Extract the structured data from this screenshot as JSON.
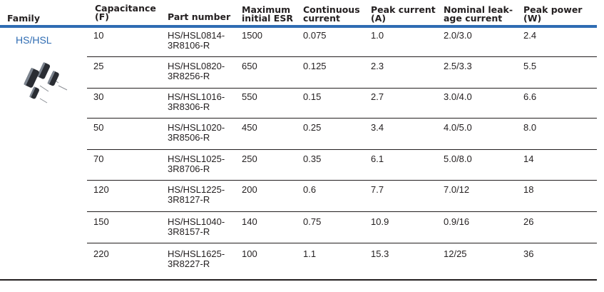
{
  "headers": {
    "family": "Family",
    "capacitance_l1": "Capacitance",
    "capacitance_l2": "(F)",
    "part_number": "Part number",
    "esr_l1": "Maximum",
    "esr_l2": "initial ESR",
    "cont_l1": "Continuous",
    "cont_l2": "current",
    "peak_l1": "Peak current",
    "peak_l2": "(A)",
    "leak_l1": "Nominal leak-",
    "leak_l2": "age current",
    "power_l1": "Peak power",
    "power_l2": "(W)"
  },
  "family": "HS/HSL",
  "rows": [
    {
      "capacitance": "10",
      "part_l1": "HS/HSL0814-",
      "part_l2": "3R8106-R",
      "esr": "1500",
      "continuous": "0.075",
      "peak_current": "1.0",
      "leakage": "2.0/3.0",
      "peak_power": "2.4"
    },
    {
      "capacitance": "25",
      "part_l1": "HS/HSL0820-",
      "part_l2": "3R8256-R",
      "esr": "650",
      "continuous": "0.125",
      "peak_current": "2.3",
      "leakage": "2.5/3.3",
      "peak_power": "5.5"
    },
    {
      "capacitance": "30",
      "part_l1": "HS/HSL1016-",
      "part_l2": "3R8306-R",
      "esr": "550",
      "continuous": "0.15",
      "peak_current": "2.7",
      "leakage": "3.0/4.0",
      "peak_power": "6.6"
    },
    {
      "capacitance": "50",
      "part_l1": "HS/HSL1020-",
      "part_l2": "3R8506-R",
      "esr": "450",
      "continuous": "0.25",
      "peak_current": "3.4",
      "leakage": "4.0/5.0",
      "peak_power": "8.0"
    },
    {
      "capacitance": "70",
      "part_l1": "HS/HSL1025-",
      "part_l2": "3R8706-R",
      "esr": "250",
      "continuous": "0.35",
      "peak_current": "6.1",
      "leakage": "5.0/8.0",
      "peak_power": "14"
    },
    {
      "capacitance": "120",
      "part_l1": "HS/HSL1225-",
      "part_l2": "3R8127-R",
      "esr": "200",
      "continuous": "0.6",
      "peak_current": "7.7",
      "leakage": "7.0/12",
      "peak_power": "18"
    },
    {
      "capacitance": "150",
      "part_l1": "HS/HSL1040-",
      "part_l2": "3R8157-R",
      "esr": "140",
      "continuous": "0.75",
      "peak_current": "10.9",
      "leakage": "0.9/16",
      "peak_power": "26"
    },
    {
      "capacitance": "220",
      "part_l1": "HS/HSL1625-",
      "part_l2": "3R8227-R",
      "esr": "100",
      "continuous": "1.1",
      "peak_current": "15.3",
      "leakage": "12/25",
      "peak_power": "36"
    }
  ],
  "colors": {
    "accent": "#2f6cb3",
    "text": "#231f20"
  }
}
